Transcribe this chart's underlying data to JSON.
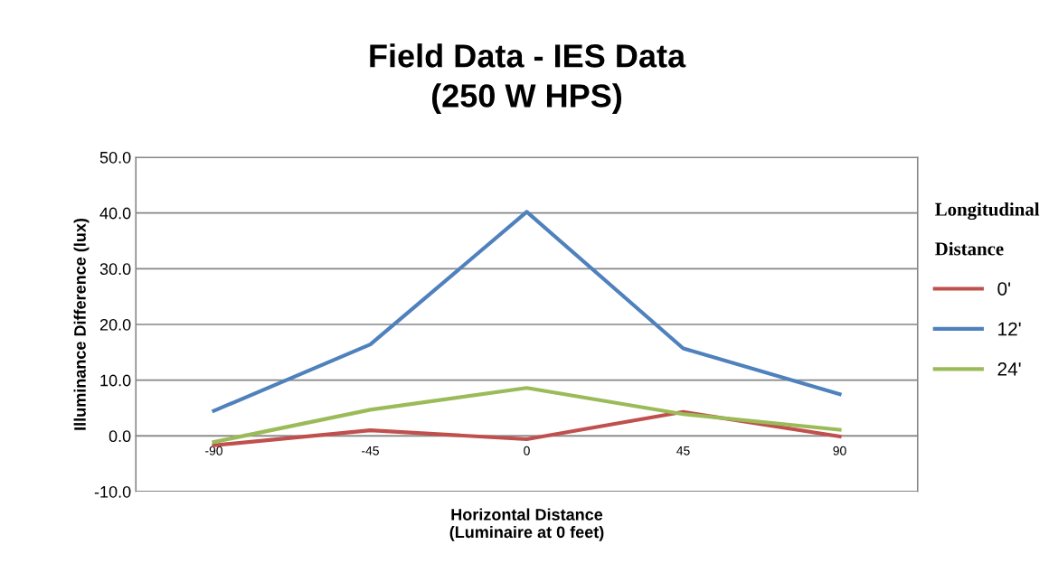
{
  "chart_data": {
    "type": "line",
    "title": "Field Data - IES Data\n(250 W HPS)",
    "xlabel": "Horizontal Distance\n(Luminaire at 0 feet)",
    "ylabel": "Illuminance Difference (lux)",
    "legend_title": "Longitudinal\n\nDistance",
    "categories": [
      "-90",
      "-45",
      "0",
      "45",
      "90"
    ],
    "series": [
      {
        "name": "0'",
        "color": "#c0504d",
        "values": [
          -1.7,
          1.0,
          -0.6,
          4.3,
          -0.1
        ]
      },
      {
        "name": "12'",
        "color": "#4f81bd",
        "values": [
          4.5,
          16.4,
          40.2,
          15.7,
          7.5
        ]
      },
      {
        "name": "24'",
        "color": "#9bbb59",
        "values": [
          -1.1,
          4.7,
          8.6,
          3.9,
          1.1
        ]
      }
    ],
    "ylim": [
      -10,
      50
    ],
    "yticks": [
      {
        "value": -10,
        "label": "-10.0"
      },
      {
        "value": 0,
        "label": "0.0"
      },
      {
        "value": 10,
        "label": "10.0"
      },
      {
        "value": 20,
        "label": "20.0"
      },
      {
        "value": 30,
        "label": "30.0"
      },
      {
        "value": 40,
        "label": "40.0"
      },
      {
        "value": 50,
        "label": "50.0"
      }
    ],
    "grid": "y",
    "legend": "right",
    "marker": "none",
    "line_style": "solid"
  }
}
